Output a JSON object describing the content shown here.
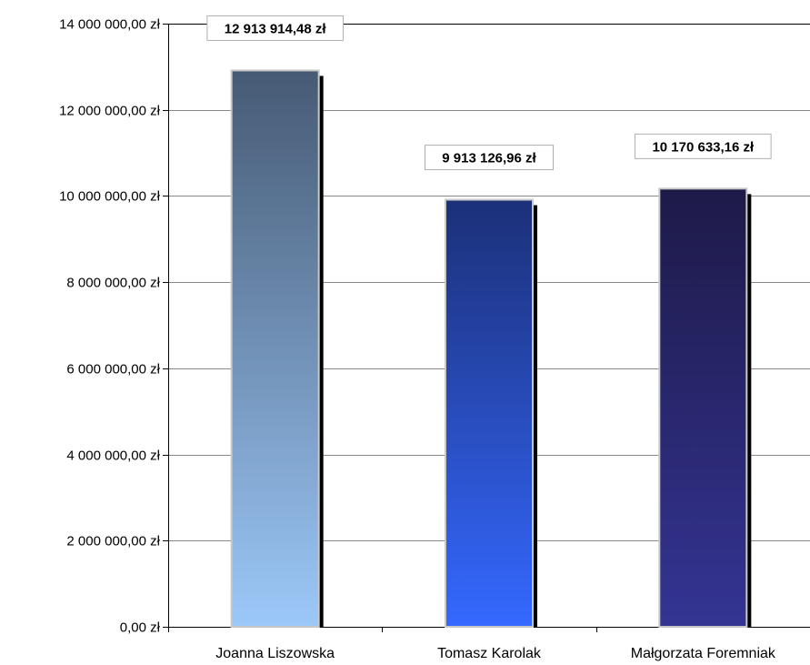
{
  "chart_data": {
    "type": "bar",
    "categories": [
      "Joanna Liszowska",
      "Tomasz Karolak",
      "Małgorzata Foremniak"
    ],
    "values": [
      12913914.48,
      9913126.96,
      10170633.16
    ],
    "data_labels": [
      "12 913 914,48 zł",
      "9 913 126,96 zł",
      "10 170 633,16 zł"
    ],
    "yticks": [
      0,
      2000000,
      4000000,
      6000000,
      8000000,
      10000000,
      12000000,
      14000000
    ],
    "ytick_labels": [
      "0,00 zł",
      "2 000 000,00 zł",
      "4 000 000,00 zł",
      "6 000 000,00 zł",
      "8 000 000,00 zł",
      "10 000 000,00 zł",
      "12 000 000,00 zł",
      "14 000 000,00 zł"
    ],
    "ylim": [
      0,
      14000000
    ],
    "title": "",
    "xlabel": "",
    "ylabel": "",
    "grid": true,
    "legend": "none",
    "bar_gradients": [
      {
        "top": "#465a74",
        "bottom": "#9cc8f8"
      },
      {
        "top": "#1c3078",
        "bottom": "#3468ff"
      },
      {
        "top": "#1e1a48",
        "bottom": "#343494"
      }
    ]
  }
}
